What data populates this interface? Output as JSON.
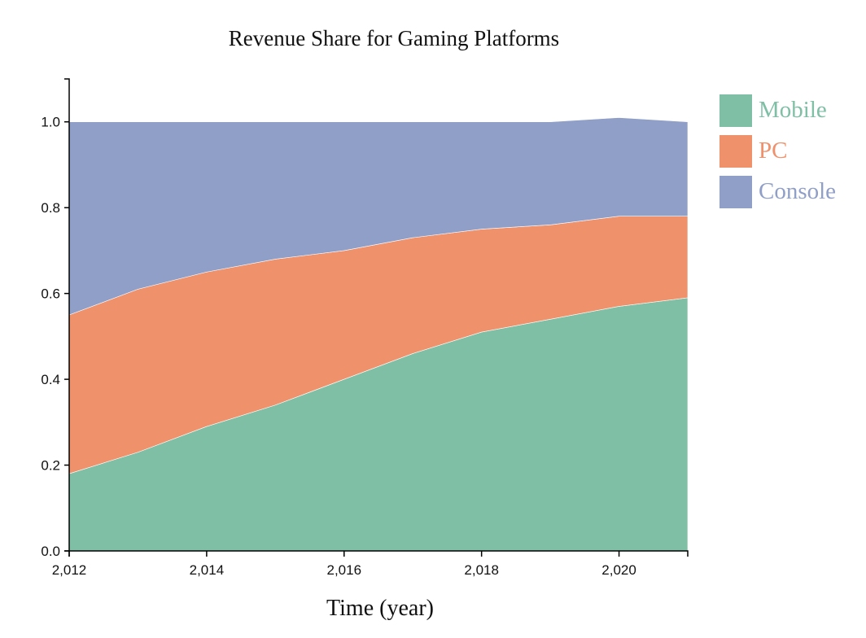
{
  "chart_data": {
    "type": "area",
    "stacked": true,
    "title": "Revenue Share for Gaming Platforms",
    "xlabel": "Time (year)",
    "ylabel": "",
    "x": [
      2012,
      2013,
      2014,
      2015,
      2016,
      2017,
      2018,
      2019,
      2020,
      2021
    ],
    "xlim": [
      2012,
      2021
    ],
    "ylim": [
      0,
      1.1
    ],
    "x_ticks": [
      "2,012",
      "2,014",
      "2,016",
      "2,018",
      "2,020"
    ],
    "y_ticks": [
      "0.0",
      "0.2",
      "0.4",
      "0.6",
      "0.8",
      "1.0"
    ],
    "grid": false,
    "legend_position": "top-right",
    "series": [
      {
        "name": "Mobile",
        "color": "#7fbfa6",
        "values": [
          0.18,
          0.23,
          0.29,
          0.34,
          0.4,
          0.46,
          0.51,
          0.54,
          0.57,
          0.59
        ]
      },
      {
        "name": "PC",
        "color": "#ef916b",
        "values": [
          0.37,
          0.38,
          0.36,
          0.34,
          0.3,
          0.27,
          0.24,
          0.22,
          0.21,
          0.19
        ]
      },
      {
        "name": "Console",
        "color": "#909fc7",
        "values": [
          0.45,
          0.39,
          0.35,
          0.32,
          0.3,
          0.27,
          0.25,
          0.24,
          0.23,
          0.22
        ]
      }
    ]
  }
}
